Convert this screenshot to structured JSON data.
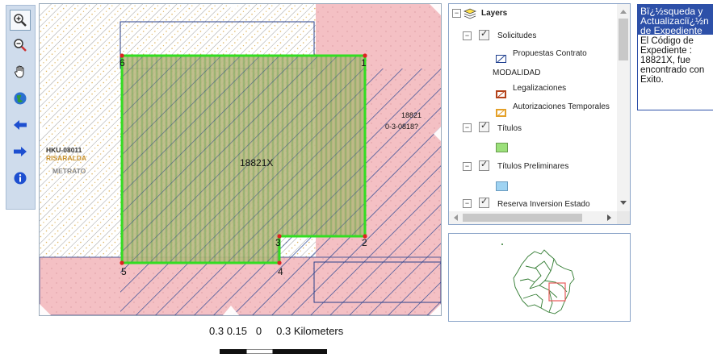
{
  "map": {
    "parcel_center_label": "18821X",
    "vertices": [
      "1",
      "2",
      "3",
      "4",
      "5",
      "6"
    ],
    "left_labels": [
      "HKU-08011",
      "RISARALDA",
      "METRATO"
    ],
    "right_labels": [
      "18821",
      "0-3-0818?"
    ]
  },
  "scalebar": {
    "labels": [
      "0.3",
      "0.15",
      "0",
      "0.3 Kilometers"
    ]
  },
  "layers": {
    "root": "Layers",
    "items": [
      "Solicitudes",
      "Propuestas Contrato",
      "MODALIDAD",
      "Legalizaciones",
      "Autorizaciones Temporales",
      "Títulos",
      "Títulos Preliminares",
      "Reserva Inversion Estado"
    ]
  },
  "info": {
    "title_lines": [
      "Bï¿½squeda y",
      "Actualizaciï¿½n",
      "de Expediente"
    ],
    "body_lines": [
      "El Código de",
      "Expediente :",
      "18821X, fue",
      "encontrado con",
      "Exito."
    ]
  },
  "colors": {
    "pink_zone": "#f4c0c4",
    "navy_hatch": "#1f3f8f",
    "green_border": "#33dd22",
    "toolbar_bg": "#cfdcec",
    "info_header": "#2d50a8"
  }
}
